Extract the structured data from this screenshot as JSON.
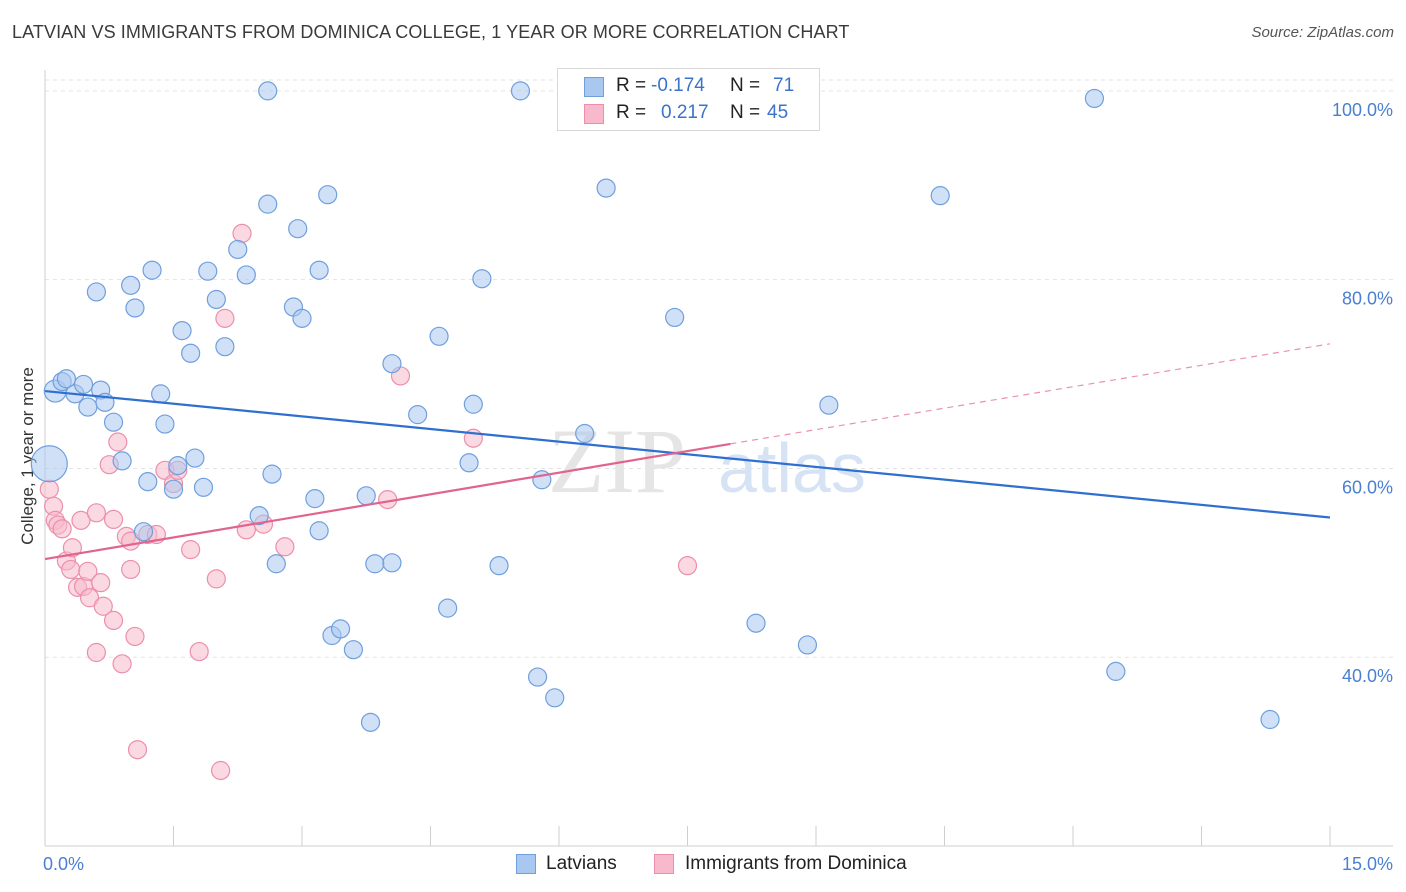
{
  "title": "LATVIAN VS IMMIGRANTS FROM DOMINICA COLLEGE, 1 YEAR OR MORE CORRELATION CHART",
  "source": "Source: ZipAtlas.com",
  "legend": {
    "rows": [
      {
        "r_label": "R =",
        "r_value": "-0.174",
        "n_label": "N =",
        "n_value": "71"
      },
      {
        "r_label": "R =",
        "r_value": "0.217",
        "n_label": "N =",
        "n_value": "45"
      }
    ]
  },
  "bottom_legend": {
    "series1": "Latvians",
    "series2": "Immigrants from Dominica"
  },
  "watermark": {
    "zip": "ZIP",
    "atlas": "atlas"
  },
  "colors": {
    "blue_fill": "#a9c8f0",
    "blue_stroke": "#6f9fde",
    "blue_line": "#2f6fcf",
    "pink_fill": "#f7b9cb",
    "pink_stroke": "#ec8fab",
    "pink_line": "#e0648e",
    "grid": "#e3e3e3",
    "axis_text": "#4a7fd1"
  },
  "chart_data": {
    "type": "scatter",
    "title": "LATVIAN VS IMMIGRANTS FROM DOMINICA COLLEGE, 1 YEAR OR MORE CORRELATION CHART",
    "xlabel": "",
    "ylabel": "College, 1 year or more",
    "xlim": [
      0,
      15
    ],
    "ylim": [
      20,
      102
    ],
    "x_tick_labels": [
      "0.0%",
      "15.0%"
    ],
    "y_ticks": [
      40,
      60,
      80,
      100
    ],
    "y_tick_labels": [
      "40.0%",
      "60.0%",
      "80.0%",
      "100.0%"
    ],
    "grid": true,
    "series": [
      {
        "name": "Latvians",
        "r": -0.174,
        "n": 71,
        "trend": {
          "x": [
            0,
            15
          ],
          "y": [
            68.2,
            54.8
          ]
        },
        "points": [
          [
            0.05,
            60.5,
            18
          ],
          [
            0.12,
            68.2,
            11
          ],
          [
            0.2,
            69.2,
            9
          ],
          [
            0.25,
            69.5,
            9
          ],
          [
            0.35,
            67.9,
            9
          ],
          [
            0.45,
            68.9,
            9
          ],
          [
            0.5,
            66.5,
            9
          ],
          [
            0.6,
            78.7,
            9
          ],
          [
            0.65,
            68.3,
            9
          ],
          [
            0.7,
            67.0,
            9
          ],
          [
            0.8,
            64.9,
            9
          ],
          [
            0.9,
            60.8,
            9
          ],
          [
            1.0,
            79.4,
            9
          ],
          [
            1.05,
            77.0,
            9
          ],
          [
            1.15,
            53.3,
            9
          ],
          [
            1.2,
            58.6,
            9
          ],
          [
            1.25,
            81.0,
            9
          ],
          [
            1.35,
            67.9,
            9
          ],
          [
            1.4,
            64.7,
            9
          ],
          [
            1.5,
            57.8,
            9
          ],
          [
            1.55,
            60.3,
            9
          ],
          [
            1.6,
            74.6,
            9
          ],
          [
            1.7,
            72.2,
            9
          ],
          [
            1.75,
            61.1,
            9
          ],
          [
            1.85,
            58.0,
            9
          ],
          [
            1.9,
            80.9,
            9
          ],
          [
            2.0,
            77.9,
            9
          ],
          [
            2.1,
            72.9,
            9
          ],
          [
            2.25,
            83.2,
            9
          ],
          [
            2.35,
            80.5,
            9
          ],
          [
            2.5,
            55.0,
            9
          ],
          [
            2.6,
            88.0,
            9
          ],
          [
            2.65,
            59.4,
            9
          ],
          [
            2.7,
            49.9,
            9
          ],
          [
            2.6,
            100.0,
            9
          ],
          [
            2.9,
            77.1,
            9
          ],
          [
            2.95,
            85.4,
            9
          ],
          [
            3.0,
            75.9,
            9
          ],
          [
            3.15,
            56.8,
            9
          ],
          [
            3.2,
            81.0,
            9
          ],
          [
            3.3,
            89.0,
            9
          ],
          [
            3.2,
            53.4,
            9
          ],
          [
            3.35,
            42.3,
            9
          ],
          [
            3.45,
            43.0,
            9
          ],
          [
            3.6,
            40.8,
            9
          ],
          [
            3.75,
            57.1,
            9
          ],
          [
            3.8,
            33.1,
            9
          ],
          [
            3.85,
            49.9,
            9
          ],
          [
            4.05,
            71.1,
            9
          ],
          [
            4.05,
            50.0,
            9
          ],
          [
            4.35,
            65.7,
            9
          ],
          [
            4.7,
            45.2,
            9
          ],
          [
            4.6,
            74.0,
            9
          ],
          [
            4.95,
            60.6,
            9
          ],
          [
            5.0,
            66.8,
            9
          ],
          [
            5.1,
            80.1,
            9
          ],
          [
            5.3,
            49.7,
            9
          ],
          [
            5.55,
            100.0,
            9
          ],
          [
            5.75,
            37.9,
            9
          ],
          [
            5.8,
            58.8,
            9
          ],
          [
            5.95,
            35.7,
            9
          ],
          [
            6.3,
            63.7,
            9
          ],
          [
            6.55,
            89.7,
            9
          ],
          [
            7.35,
            76.0,
            9
          ],
          [
            8.3,
            43.6,
            9
          ],
          [
            8.9,
            41.3,
            9
          ],
          [
            9.15,
            66.7,
            9
          ],
          [
            10.45,
            88.9,
            9
          ],
          [
            12.25,
            99.2,
            9
          ],
          [
            12.5,
            38.5,
            9
          ],
          [
            14.3,
            33.4,
            9
          ]
        ]
      },
      {
        "name": "Immigrants from Dominica",
        "r": 0.217,
        "n": 45,
        "trend": {
          "x": [
            0,
            8.0
          ],
          "y": [
            50.4,
            62.6
          ]
        },
        "trend_dashed": {
          "x": [
            8.0,
            15
          ],
          "y": [
            62.6,
            73.2
          ]
        },
        "points": [
          [
            0.05,
            57.8,
            9
          ],
          [
            0.1,
            56.0,
            9
          ],
          [
            0.12,
            54.5,
            9
          ],
          [
            0.15,
            54.0,
            9
          ],
          [
            0.2,
            53.6,
            9
          ],
          [
            0.25,
            50.2,
            9
          ],
          [
            0.3,
            49.3,
            9
          ],
          [
            0.32,
            51.6,
            9
          ],
          [
            0.38,
            47.4,
            9
          ],
          [
            0.42,
            54.5,
            9
          ],
          [
            0.45,
            47.5,
            9
          ],
          [
            0.5,
            49.1,
            9
          ],
          [
            0.52,
            46.3,
            9
          ],
          [
            0.6,
            55.3,
            9
          ],
          [
            0.6,
            40.5,
            9
          ],
          [
            0.65,
            47.9,
            9
          ],
          [
            0.68,
            45.4,
            9
          ],
          [
            0.75,
            60.4,
            9
          ],
          [
            0.8,
            54.6,
            9
          ],
          [
            0.8,
            43.9,
            9
          ],
          [
            0.85,
            62.8,
            9
          ],
          [
            0.9,
            39.3,
            9
          ],
          [
            0.95,
            52.8,
            9
          ],
          [
            1.0,
            52.3,
            9
          ],
          [
            1.0,
            49.3,
            9
          ],
          [
            1.05,
            42.2,
            9
          ],
          [
            1.08,
            30.2,
            9
          ],
          [
            1.2,
            53.0,
            9
          ],
          [
            1.3,
            53.0,
            9
          ],
          [
            1.4,
            59.8,
            9
          ],
          [
            1.5,
            58.4,
            9
          ],
          [
            1.55,
            59.8,
            9
          ],
          [
            1.7,
            51.4,
            9
          ],
          [
            1.8,
            40.6,
            9
          ],
          [
            2.0,
            48.3,
            9
          ],
          [
            2.05,
            28.0,
            9
          ],
          [
            2.1,
            75.9,
            9
          ],
          [
            2.3,
            84.9,
            9
          ],
          [
            2.35,
            53.5,
            9
          ],
          [
            2.55,
            54.1,
            9
          ],
          [
            2.8,
            51.7,
            9
          ],
          [
            4.0,
            56.7,
            9
          ],
          [
            4.15,
            69.8,
            9
          ],
          [
            5.0,
            63.2,
            9
          ],
          [
            7.5,
            49.7,
            9
          ]
        ]
      }
    ]
  }
}
